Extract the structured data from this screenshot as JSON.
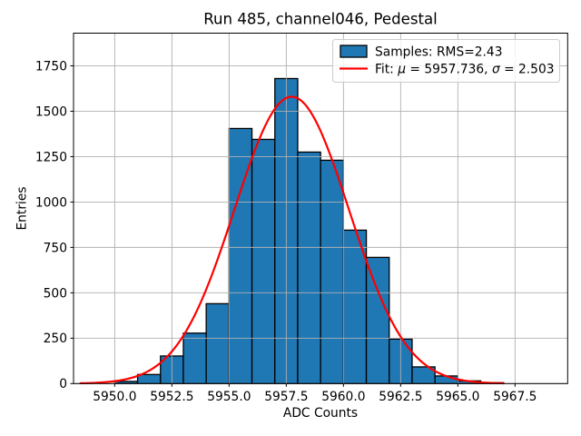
{
  "chart_data": {
    "type": "bar",
    "subtype": "histogram-with-gaussian-fit",
    "title": "Run 485, channel046, Pedestal",
    "xlabel": "ADC Counts",
    "ylabel": "Entries",
    "xlim": [
      5948.2,
      5969.8
    ],
    "ylim": [
      0,
      1930
    ],
    "xticks": [
      5950.0,
      5952.5,
      5955.0,
      5957.5,
      5960.0,
      5962.5,
      5965.0,
      5967.5
    ],
    "xtick_labels": [
      "5950.0",
      "5952.5",
      "5955.0",
      "5957.5",
      "5960.0",
      "5962.5",
      "5965.0",
      "5967.5"
    ],
    "yticks": [
      0,
      250,
      500,
      750,
      1000,
      1250,
      1500,
      1750
    ],
    "ytick_labels": [
      "0",
      "250",
      "500",
      "750",
      "1000",
      "1250",
      "1500",
      "1750"
    ],
    "grid": true,
    "legend_position": "upper right",
    "bin_start": 5950,
    "bin_width": 1,
    "counts": [
      12,
      50,
      152,
      278,
      440,
      1405,
      1345,
      1680,
      1275,
      1230,
      845,
      695,
      245,
      92,
      42,
      15,
      5
    ],
    "rms": 2.43,
    "fit": {
      "mu": 5957.736,
      "sigma": 2.503,
      "peak": 1580,
      "x_start": 5948.5,
      "x_end": 5967.0
    },
    "colors": {
      "bar_fill": "#1f77b4",
      "bar_edge": "#000000",
      "fit_line": "#ff0000",
      "grid": "#b0b0b0",
      "spine": "#000000"
    }
  },
  "legend": {
    "samples_label": "Samples: RMS=2.43",
    "fit": {
      "pre": "Fit: ",
      "mu": "μ",
      "mid": " = 5957.736, ",
      "sigma": "σ",
      "post": " = 2.503"
    }
  }
}
